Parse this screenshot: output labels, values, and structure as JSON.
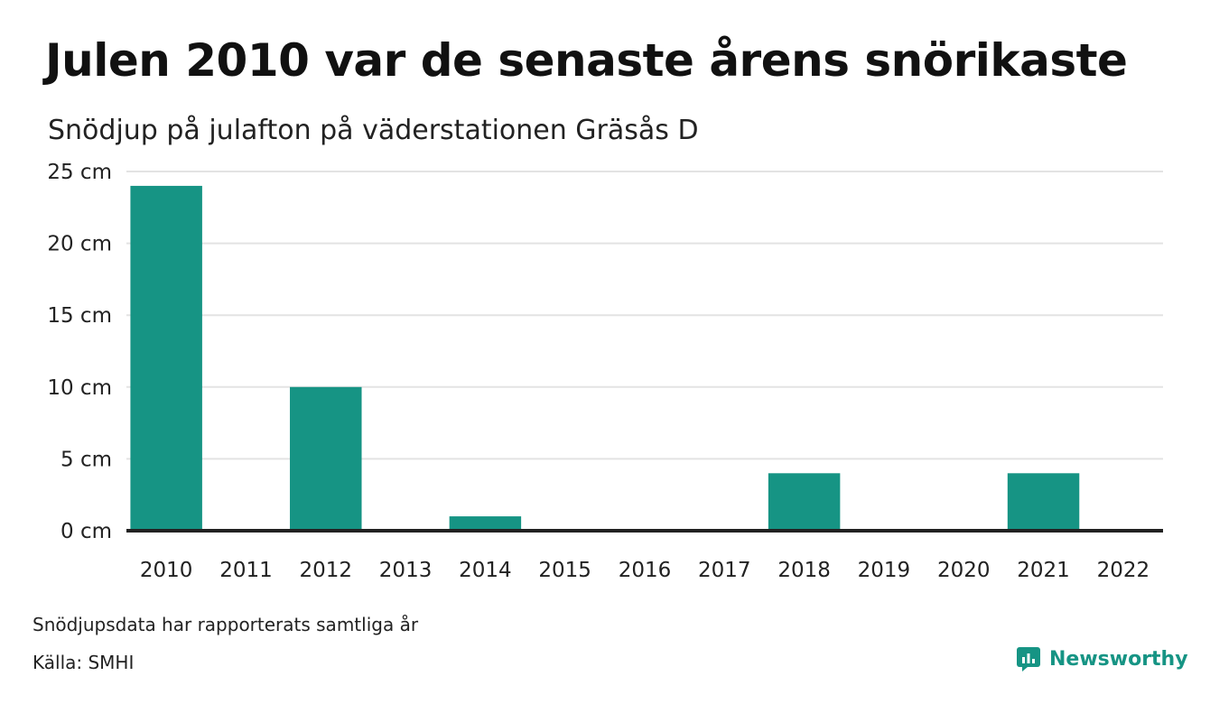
{
  "title": "Julen 2010 var de senaste årens snörikaste",
  "subtitle": "Snödjup på julafton på väderstationen Gräsås D",
  "note": "Snödjupsdata har rapporterats samtliga år",
  "source": "Källa: SMHI",
  "brand": {
    "name": "Newsworthy",
    "icon": "newsworthy-logo-icon"
  },
  "colors": {
    "bar": "#169484",
    "grid": "#e3e3e3",
    "axis": "#222222",
    "brand": "#169484"
  },
  "chart_data": {
    "type": "bar",
    "categories": [
      "2010",
      "2011",
      "2012",
      "2013",
      "2014",
      "2015",
      "2016",
      "2017",
      "2018",
      "2019",
      "2020",
      "2021",
      "2022"
    ],
    "values": [
      24,
      0,
      10,
      0,
      1,
      0,
      0,
      0,
      4,
      0,
      0,
      4,
      0
    ],
    "unit": "cm",
    "ylim": [
      0,
      25
    ],
    "yticks": [
      0,
      5,
      10,
      15,
      20,
      25
    ],
    "ytick_labels": [
      "0 cm",
      "5 cm",
      "10 cm",
      "15 cm",
      "20 cm",
      "25 cm"
    ],
    "grid": true,
    "legend": false
  }
}
